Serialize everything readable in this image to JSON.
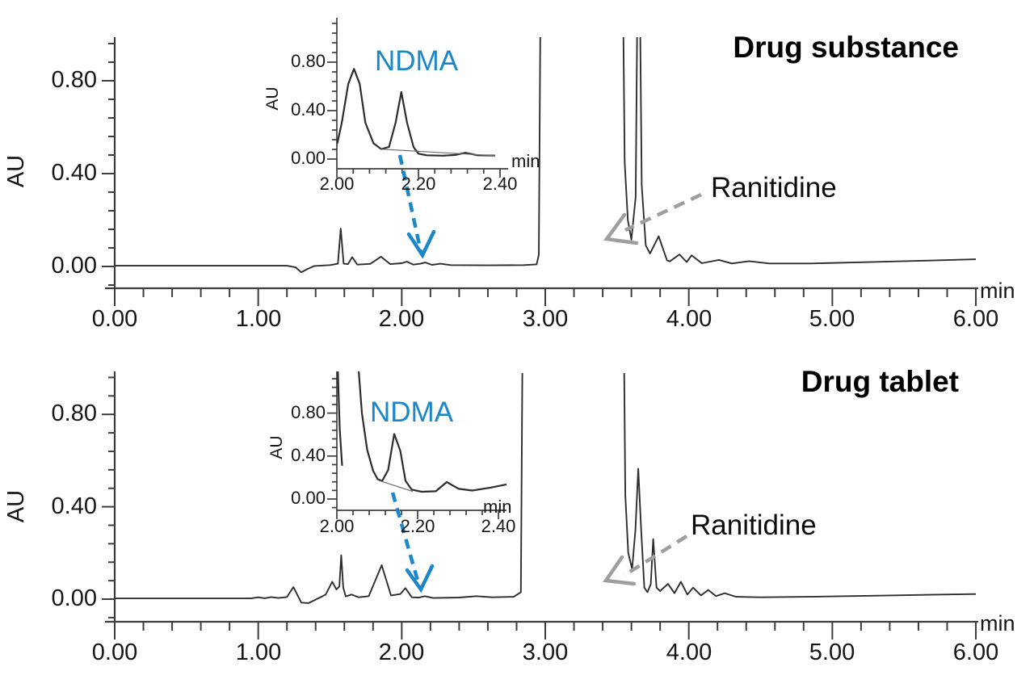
{
  "figure": {
    "panels": [
      {
        "title": "Drug substance",
        "axes": {
          "y_label": "AU",
          "x_unit": "min",
          "x_ticks": [
            "0.00",
            "1.00",
            "2.00",
            "3.00",
            "4.00",
            "5.00",
            "6.00"
          ],
          "y_ticks": [
            "0.00",
            "0.40",
            "0.80"
          ]
        },
        "inset": {
          "y_label": "AU",
          "x_unit": "min",
          "x_ticks": [
            "2.00",
            "2.20",
            "2.40"
          ],
          "y_ticks": [
            "0.00",
            "0.40",
            "0.80"
          ],
          "annotation": "NDMA"
        },
        "peak_annotation": "Ranitidine"
      },
      {
        "title": "Drug tablet",
        "axes": {
          "y_label": "AU",
          "x_unit": "min",
          "x_ticks": [
            "0.00",
            "1.00",
            "2.00",
            "3.00",
            "4.00",
            "5.00",
            "6.00"
          ],
          "y_ticks": [
            "0.00",
            "0.40",
            "0.80"
          ]
        },
        "inset": {
          "y_label": "AU",
          "x_unit": "min",
          "x_ticks": [
            "2.00",
            "2.20",
            "2.40"
          ],
          "y_ticks": [
            "0.00",
            "0.40",
            "0.80"
          ],
          "annotation": "NDMA"
        },
        "peak_annotation": "Ranitidine"
      }
    ]
  },
  "colors": {
    "ndma_blue": "#1b87c8",
    "arrow_gray": "#9e9e9e",
    "trace": "#2d2d2d",
    "axis": "#3d3d3d"
  },
  "chart_data": [
    {
      "type": "line",
      "title": "Drug substance",
      "xlabel": "min",
      "ylabel": "AU",
      "xlim": [
        0,
        6
      ],
      "ylim": [
        -0.1,
        1.0
      ],
      "x_major_ticks": [
        0,
        1,
        2,
        3,
        4,
        5,
        6
      ],
      "y_major_ticks": [
        0,
        0.4,
        0.8
      ],
      "grid": false,
      "annotations": [
        {
          "text": "Ranitidine",
          "target_min": 3.5
        },
        {
          "text": "NDMA",
          "target_min": 2.17
        }
      ],
      "series": [
        {
          "name": "main_trace",
          "points": [
            [
              0,
              0.003
            ],
            [
              1.2,
              0.003
            ],
            [
              1.26,
              -0.004
            ],
            [
              1.3,
              -0.025
            ],
            [
              1.34,
              -0.012
            ],
            [
              1.39,
              0.002
            ],
            [
              1.5,
              0.006
            ],
            [
              1.555,
              0.012
            ],
            [
              1.575,
              0.163
            ],
            [
              1.595,
              0.012
            ],
            [
              1.625,
              0.01
            ],
            [
              1.655,
              0.04
            ],
            [
              1.69,
              0.008
            ],
            [
              1.78,
              0.011
            ],
            [
              1.855,
              0.042
            ],
            [
              1.92,
              0.01
            ],
            [
              2.0,
              0.014
            ],
            [
              2.035,
              0.021
            ],
            [
              2.08,
              0.008
            ],
            [
              2.13,
              0.012
            ],
            [
              2.165,
              0.017
            ],
            [
              2.21,
              0.007
            ],
            [
              2.27,
              0.012
            ],
            [
              2.34,
              0.006
            ],
            [
              2.6,
              0.005
            ],
            [
              2.85,
              0.006
            ],
            [
              2.94,
              0.009
            ],
            [
              2.955,
              0.05
            ],
            [
              2.968,
              1.25
            ],
            [
              3.54,
              1.25
            ],
            [
              3.553,
              0.45
            ],
            [
              3.575,
              0.2
            ],
            [
              3.6,
              0.115
            ],
            [
              3.63,
              0.3
            ],
            [
              3.643,
              1.25
            ],
            [
              3.658,
              1.25
            ],
            [
              3.672,
              0.35
            ],
            [
              3.7,
              0.09
            ],
            [
              3.73,
              0.056
            ],
            [
              3.79,
              0.13
            ],
            [
              3.848,
              0.026
            ],
            [
              3.868,
              0.022
            ],
            [
              3.935,
              0.052
            ],
            [
              3.985,
              0.019
            ],
            [
              4.02,
              0.048
            ],
            [
              4.09,
              0.014
            ],
            [
              4.21,
              0.028
            ],
            [
              4.3,
              0.013
            ],
            [
              4.42,
              0.023
            ],
            [
              4.56,
              0.013
            ],
            [
              4.85,
              0.013
            ],
            [
              5.2,
              0.018
            ],
            [
              5.65,
              0.025
            ],
            [
              6,
              0.031
            ]
          ]
        }
      ],
      "inset": {
        "type": "line",
        "xlim": [
          2.0,
          2.42
        ],
        "ylim": [
          -0.06,
          1.17
        ],
        "x_major_ticks": [
          2.0,
          2.2,
          2.4
        ],
        "y_major_ticks": [
          0,
          0.4,
          0.8
        ],
        "series": [
          {
            "name": "zoom_trace",
            "points": [
              [
                2.001,
                0.127
              ],
              [
                2.012,
                0.3
              ],
              [
                2.028,
                0.62
              ],
              [
                2.042,
                0.745
              ],
              [
                2.056,
                0.62
              ],
              [
                2.07,
                0.3
              ],
              [
                2.09,
                0.13
              ],
              [
                2.109,
                0.082
              ],
              [
                2.128,
                0.1
              ],
              [
                2.144,
                0.3
              ],
              [
                2.158,
                0.553
              ],
              [
                2.172,
                0.3
              ],
              [
                2.188,
                0.1
              ],
              [
                2.2,
                0.045
              ],
              [
                2.22,
                0.031
              ],
              [
                2.26,
                0.028
              ],
              [
                2.29,
                0.034
              ],
              [
                2.315,
                0.052
              ],
              [
                2.345,
                0.031
              ],
              [
                2.388,
                0.029
              ]
            ]
          },
          {
            "name": "integration_baseline",
            "points": [
              [
                2.106,
                0.082
              ],
              [
                2.388,
                0.028
              ]
            ]
          }
        ]
      }
    },
    {
      "type": "line",
      "title": "Drug tablet",
      "xlabel": "min",
      "ylabel": "AU",
      "xlim": [
        0,
        6
      ],
      "ylim": [
        -0.1,
        1.0
      ],
      "x_major_ticks": [
        0,
        1,
        2,
        3,
        4,
        5,
        6
      ],
      "y_major_ticks": [
        0,
        0.4,
        0.8
      ],
      "grid": false,
      "annotations": [
        {
          "text": "Ranitidine",
          "target_min": 3.5
        },
        {
          "text": "NDMA",
          "target_min": 2.17
        }
      ],
      "series": [
        {
          "name": "main_trace",
          "points": [
            [
              0,
              0.003
            ],
            [
              0.95,
              0.003
            ],
            [
              1.0,
              0.008
            ],
            [
              1.045,
              0.004
            ],
            [
              1.09,
              0.009
            ],
            [
              1.14,
              0.005
            ],
            [
              1.2,
              0.009
            ],
            [
              1.245,
              0.052
            ],
            [
              1.3,
              -0.015
            ],
            [
              1.35,
              -0.017
            ],
            [
              1.42,
              0.004
            ],
            [
              1.47,
              0.02
            ],
            [
              1.515,
              0.075
            ],
            [
              1.545,
              0.042
            ],
            [
              1.565,
              0.055
            ],
            [
              1.578,
              0.19
            ],
            [
              1.592,
              0.05
            ],
            [
              1.61,
              0.012
            ],
            [
              1.65,
              0.02
            ],
            [
              1.7,
              0.008
            ],
            [
              1.77,
              0.013
            ],
            [
              1.86,
              0.147
            ],
            [
              1.925,
              0.016
            ],
            [
              1.99,
              0.022
            ],
            [
              2.025,
              0.048
            ],
            [
              2.07,
              0.008
            ],
            [
              2.12,
              0.007
            ],
            [
              2.16,
              0.013
            ],
            [
              2.22,
              0.005
            ],
            [
              2.4,
              0.007
            ],
            [
              2.52,
              0.013
            ],
            [
              2.63,
              0.008
            ],
            [
              2.78,
              0.01
            ],
            [
              2.83,
              0.03
            ],
            [
              2.843,
              1.25
            ],
            [
              3.546,
              1.25
            ],
            [
              3.558,
              0.45
            ],
            [
              3.578,
              0.2
            ],
            [
              3.605,
              0.13
            ],
            [
              3.628,
              0.3
            ],
            [
              3.648,
              0.565
            ],
            [
              3.668,
              0.3
            ],
            [
              3.69,
              0.05
            ],
            [
              3.712,
              0.03
            ],
            [
              3.735,
              0.065
            ],
            [
              3.752,
              0.26
            ],
            [
              3.775,
              0.05
            ],
            [
              3.8,
              0.035
            ],
            [
              3.855,
              0.066
            ],
            [
              3.9,
              0.026
            ],
            [
              3.945,
              0.075
            ],
            [
              3.99,
              0.02
            ],
            [
              4.03,
              0.05
            ],
            [
              4.085,
              0.016
            ],
            [
              4.135,
              0.04
            ],
            [
              4.19,
              0.013
            ],
            [
              4.25,
              0.026
            ],
            [
              4.33,
              0.01
            ],
            [
              4.5,
              0.008
            ],
            [
              4.9,
              0.011
            ],
            [
              5.4,
              0.016
            ],
            [
              6,
              0.022
            ]
          ]
        }
      ],
      "inset": {
        "type": "line",
        "xlim": [
          2.0,
          2.42
        ],
        "ylim": [
          -0.06,
          1.19
        ],
        "x_major_ticks": [
          2.0,
          2.2,
          2.4
        ],
        "y_major_ticks": [
          0,
          0.4,
          0.8
        ],
        "series": [
          {
            "name": "zoom_trace",
            "points": [
              [
                2.053,
                1.25
              ],
              [
                2.062,
                0.8
              ],
              [
                2.075,
                0.46
              ],
              [
                2.09,
                0.26
              ],
              [
                2.101,
                0.185
              ],
              [
                2.112,
                0.168
              ],
              [
                2.127,
                0.27
              ],
              [
                2.142,
                0.605
              ],
              [
                2.157,
                0.45
              ],
              [
                2.17,
                0.17
              ],
              [
                2.185,
                0.088
              ],
              [
                2.21,
                0.068
              ],
              [
                2.245,
                0.072
              ],
              [
                2.272,
                0.158
              ],
              [
                2.302,
                0.095
              ],
              [
                2.335,
                0.079
              ],
              [
                2.38,
                0.106
              ],
              [
                2.42,
                0.136
              ]
            ]
          },
          {
            "name": "offscale_peak_tail",
            "points": [
              [
                2.002,
                1.25
              ],
              [
                2.007,
                0.66
              ],
              [
                2.013,
                0.31
              ]
            ]
          },
          {
            "name": "integration_baseline",
            "points": [
              [
                2.104,
                0.172
              ],
              [
                2.188,
                0.07
              ]
            ]
          }
        ]
      }
    }
  ]
}
